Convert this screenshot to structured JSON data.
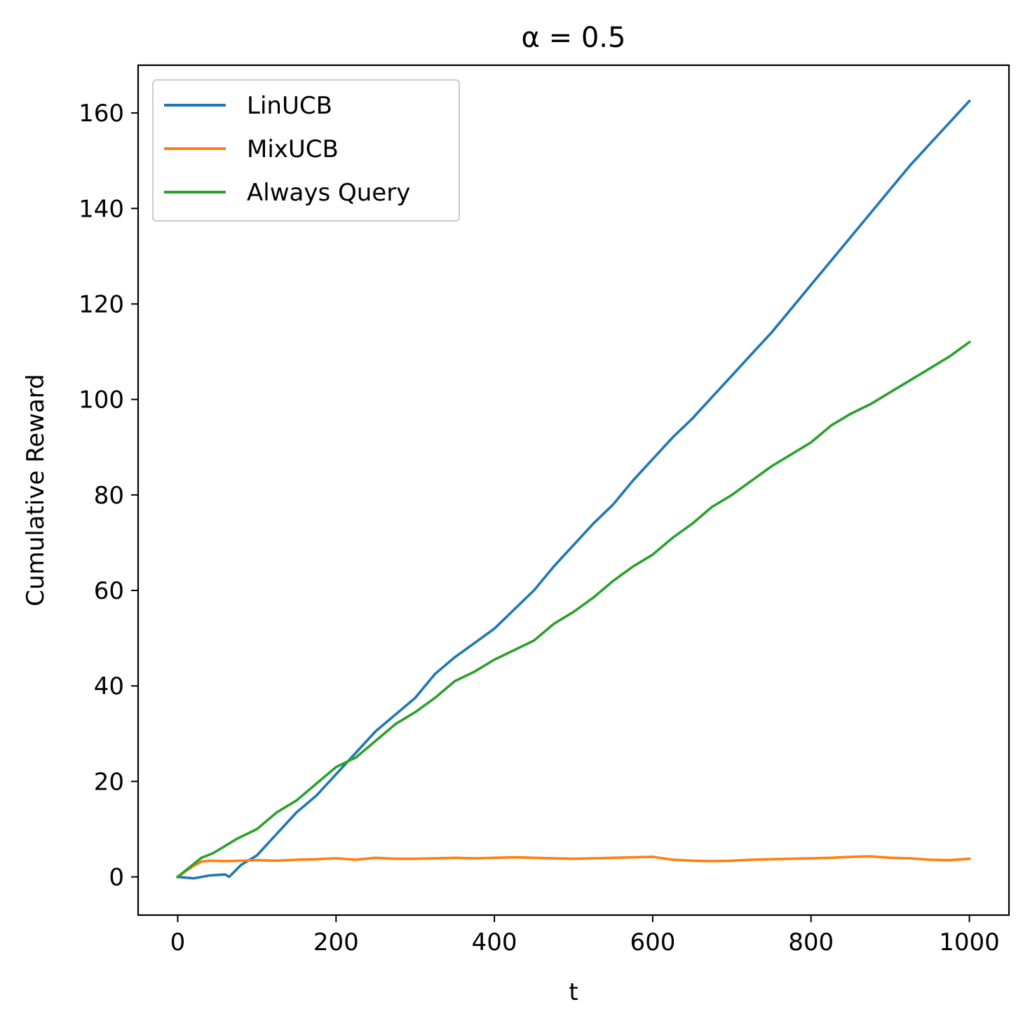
{
  "chart_data": {
    "type": "line",
    "title": "α = 0.5",
    "xlabel": "t",
    "ylabel": "Cumulative Reward",
    "xlim": [
      -50,
      1050
    ],
    "ylim": [
      -8,
      170
    ],
    "xticks": [
      0,
      200,
      400,
      600,
      800,
      1000
    ],
    "yticks": [
      0,
      20,
      40,
      60,
      80,
      100,
      120,
      140,
      160
    ],
    "xtick_labels": [
      "0",
      "200",
      "400",
      "600",
      "800",
      "1000"
    ],
    "ytick_labels": [
      "0",
      "20",
      "40",
      "60",
      "80",
      "100",
      "120",
      "140",
      "160"
    ],
    "grid": false,
    "legend_position": "top-left",
    "series": [
      {
        "name": "LinUCB",
        "color": "#1f77b4",
        "x": [
          0,
          20,
          40,
          60,
          65,
          80,
          100,
          125,
          150,
          175,
          200,
          225,
          250,
          275,
          300,
          325,
          350,
          375,
          400,
          425,
          450,
          475,
          500,
          525,
          550,
          575,
          600,
          625,
          650,
          675,
          700,
          725,
          750,
          775,
          800,
          825,
          850,
          875,
          900,
          925,
          950,
          975,
          1000
        ],
        "y": [
          0,
          -0.3,
          0.3,
          0.5,
          0,
          2.5,
          4.5,
          9,
          13.5,
          17,
          21.5,
          26,
          30.5,
          34,
          37.5,
          42.5,
          46,
          49,
          52,
          56,
          60,
          65,
          69.5,
          74,
          78,
          83,
          87.5,
          92,
          96,
          100.5,
          105,
          109.5,
          114,
          119,
          124,
          129,
          134,
          139,
          144,
          149,
          153.5,
          158,
          162.5
        ]
      },
      {
        "name": "MixUCB",
        "color": "#ff7f0e",
        "x": [
          0,
          10,
          20,
          30,
          40,
          60,
          80,
          100,
          125,
          150,
          175,
          200,
          225,
          250,
          275,
          300,
          325,
          350,
          375,
          400,
          425,
          450,
          475,
          500,
          525,
          550,
          575,
          600,
          625,
          650,
          675,
          700,
          725,
          750,
          775,
          800,
          825,
          850,
          875,
          900,
          925,
          950,
          975,
          1000
        ],
        "y": [
          0,
          1.2,
          2.3,
          3.2,
          3.4,
          3.3,
          3.4,
          3.5,
          3.4,
          3.6,
          3.7,
          3.9,
          3.6,
          4.0,
          3.8,
          3.8,
          3.9,
          4.0,
          3.9,
          4.0,
          4.1,
          4.0,
          3.9,
          3.8,
          3.9,
          4.0,
          4.1,
          4.2,
          3.6,
          3.4,
          3.3,
          3.4,
          3.6,
          3.7,
          3.8,
          3.9,
          4.0,
          4.2,
          4.3,
          4.0,
          3.9,
          3.6,
          3.5,
          3.8
        ]
      },
      {
        "name": "Always Query",
        "color": "#2ca02c",
        "x": [
          0,
          15,
          30,
          45,
          60,
          75,
          100,
          125,
          150,
          175,
          200,
          225,
          250,
          275,
          300,
          325,
          350,
          375,
          400,
          425,
          450,
          475,
          500,
          525,
          550,
          575,
          600,
          625,
          650,
          675,
          700,
          725,
          750,
          775,
          800,
          825,
          850,
          875,
          900,
          925,
          950,
          975,
          1000
        ],
        "y": [
          0,
          2,
          4,
          5,
          6.5,
          8,
          10,
          13.5,
          16,
          19.5,
          23,
          25,
          28.5,
          32,
          34.5,
          37.5,
          41,
          43,
          45.5,
          47.5,
          49.5,
          53,
          55.5,
          58.5,
          62,
          65,
          67.5,
          71,
          74,
          77.5,
          80,
          83,
          86,
          88.5,
          91,
          94.5,
          97,
          99,
          101.5,
          104,
          106.5,
          109,
          112
        ]
      }
    ]
  }
}
